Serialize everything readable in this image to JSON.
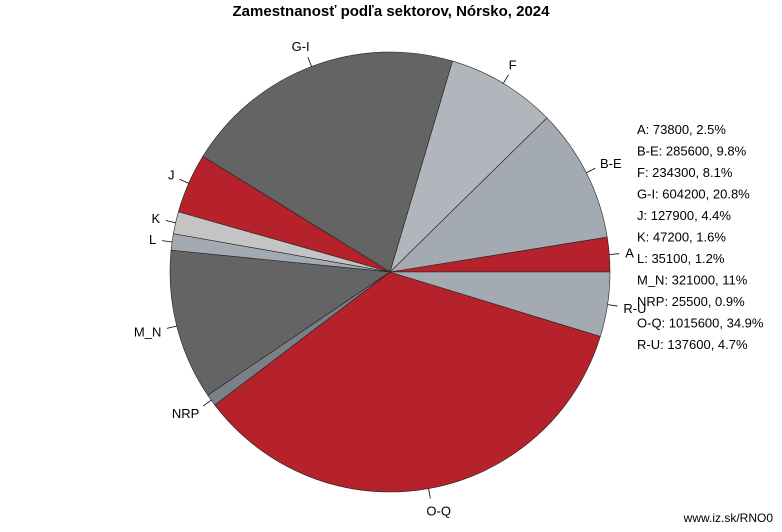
{
  "chart_data": {
    "type": "pie",
    "title": "Zamestnanosť podľa sektorov, Nórsko, 2024",
    "slices": [
      {
        "label": "A",
        "value": 73800,
        "percent_label": "2.5%",
        "color": "#b5222b"
      },
      {
        "label": "B-E",
        "value": 285600,
        "percent_label": "9.8%",
        "color": "#a3aab2"
      },
      {
        "label": "F",
        "value": 234300,
        "percent_label": "8.1%",
        "color": "#b1b6bd"
      },
      {
        "label": "G-I",
        "value": 604200,
        "percent_label": "20.8%",
        "color": "#646464"
      },
      {
        "label": "J",
        "value": 127900,
        "percent_label": "4.4%",
        "color": "#b5222b"
      },
      {
        "label": "K",
        "value": 47200,
        "percent_label": "1.6%",
        "color": "#c4c4c4"
      },
      {
        "label": "L",
        "value": 35100,
        "percent_label": "1.2%",
        "color": "#a3aab2"
      },
      {
        "label": "M_N",
        "value": 321000,
        "percent_label": "11%",
        "color": "#646464"
      },
      {
        "label": "NRP",
        "value": 25500,
        "percent_label": "0.9%",
        "color": "#7a8087"
      },
      {
        "label": "O-Q",
        "value": 1015600,
        "percent_label": "34.9%",
        "color": "#b5222b"
      },
      {
        "label": "R-U",
        "value": 137600,
        "percent_label": "4.7%",
        "color": "#a3aab2"
      }
    ],
    "legend_placement": "right"
  },
  "source": "www.iz.sk/RNO0"
}
